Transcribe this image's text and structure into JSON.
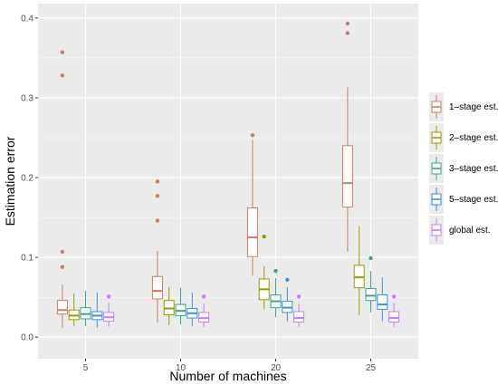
{
  "chart_data": {
    "type": "box",
    "xlabel": "Number of machines",
    "ylabel": "Estimation error",
    "categories": [
      "5",
      "10",
      "20",
      "25"
    ],
    "y_ticks": [
      0.0,
      0.1,
      0.2,
      0.3,
      0.4
    ],
    "y_tick_labels": [
      "0.0",
      "0.1",
      "0.2",
      "0.3",
      "0.4"
    ],
    "ylim": [
      -0.027,
      0.418
    ],
    "grid": true,
    "legend_position": "right",
    "series": [
      {
        "name": "1–stage est.",
        "color": "#C87E64",
        "boxes": [
          {
            "whisker_low": 0.012,
            "q1": 0.029,
            "median": 0.034,
            "q3": 0.046,
            "whisker_high": 0.066,
            "outliers": [
              0.107,
              0.088,
              0.328,
              0.357
            ]
          },
          {
            "whisker_low": 0.018,
            "q1": 0.048,
            "median": 0.058,
            "q3": 0.076,
            "whisker_high": 0.108,
            "outliers": [
              0.146,
              0.177,
              0.195
            ]
          },
          {
            "whisker_low": 0.077,
            "q1": 0.101,
            "median": 0.125,
            "q3": 0.162,
            "whisker_high": 0.247,
            "outliers": [
              0.253
            ]
          },
          {
            "whisker_low": 0.107,
            "q1": 0.163,
            "median": 0.193,
            "q3": 0.24,
            "whisker_high": 0.313,
            "outliers": [
              0.381,
              0.393
            ]
          }
        ]
      },
      {
        "name": "2–stage est.",
        "color": "#999900",
        "boxes": [
          {
            "whisker_low": 0.014,
            "q1": 0.022,
            "median": 0.027,
            "q3": 0.034,
            "whisker_high": 0.055,
            "outliers": []
          },
          {
            "whisker_low": 0.015,
            "q1": 0.028,
            "median": 0.036,
            "q3": 0.046,
            "whisker_high": 0.063,
            "outliers": []
          },
          {
            "whisker_low": 0.035,
            "q1": 0.047,
            "median": 0.06,
            "q3": 0.073,
            "whisker_high": 0.089,
            "outliers": [
              0.126
            ]
          },
          {
            "whisker_low": 0.028,
            "q1": 0.062,
            "median": 0.075,
            "q3": 0.09,
            "whisker_high": 0.139,
            "outliers": []
          }
        ]
      },
      {
        "name": "3–stage est.",
        "color": "#3CA58C",
        "boxes": [
          {
            "whisker_low": 0.014,
            "q1": 0.023,
            "median": 0.029,
            "q3": 0.037,
            "whisker_high": 0.058,
            "outliers": []
          },
          {
            "whisker_low": 0.016,
            "q1": 0.027,
            "median": 0.033,
            "q3": 0.041,
            "whisker_high": 0.062,
            "outliers": []
          },
          {
            "whisker_low": 0.025,
            "q1": 0.037,
            "median": 0.045,
            "q3": 0.053,
            "whisker_high": 0.074,
            "outliers": [
              0.083
            ]
          },
          {
            "whisker_low": 0.031,
            "q1": 0.046,
            "median": 0.052,
            "q3": 0.061,
            "whisker_high": 0.083,
            "outliers": [
              0.099
            ]
          }
        ]
      },
      {
        "name": "5–stage est.",
        "color": "#3C92D6",
        "boxes": [
          {
            "whisker_low": 0.012,
            "q1": 0.022,
            "median": 0.027,
            "q3": 0.032,
            "whisker_high": 0.056,
            "outliers": []
          },
          {
            "whisker_low": 0.014,
            "q1": 0.024,
            "median": 0.03,
            "q3": 0.036,
            "whisker_high": 0.056,
            "outliers": []
          },
          {
            "whisker_low": 0.02,
            "q1": 0.031,
            "median": 0.037,
            "q3": 0.045,
            "whisker_high": 0.063,
            "outliers": [
              0.072
            ]
          },
          {
            "whisker_low": 0.02,
            "q1": 0.035,
            "median": 0.041,
            "q3": 0.053,
            "whisker_high": 0.075,
            "outliers": []
          }
        ]
      },
      {
        "name": "global est.",
        "color": "#C77CFF",
        "boxes": [
          {
            "whisker_low": 0.013,
            "q1": 0.02,
            "median": 0.025,
            "q3": 0.031,
            "whisker_high": 0.043,
            "outliers": [
              0.051
            ]
          },
          {
            "whisker_low": 0.013,
            "q1": 0.019,
            "median": 0.024,
            "q3": 0.031,
            "whisker_high": 0.042,
            "outliers": [
              0.051
            ]
          },
          {
            "whisker_low": 0.013,
            "q1": 0.019,
            "median": 0.024,
            "q3": 0.032,
            "whisker_high": 0.042,
            "outliers": [
              0.051
            ]
          },
          {
            "whisker_low": 0.013,
            "q1": 0.019,
            "median": 0.024,
            "q3": 0.032,
            "whisker_high": 0.043,
            "outliers": [
              0.051
            ]
          }
        ]
      }
    ]
  },
  "colors": {
    "panel_background": "#EBEBEB",
    "grid_major": "#FFFFFF",
    "box_fill": "#FFFFFF"
  }
}
